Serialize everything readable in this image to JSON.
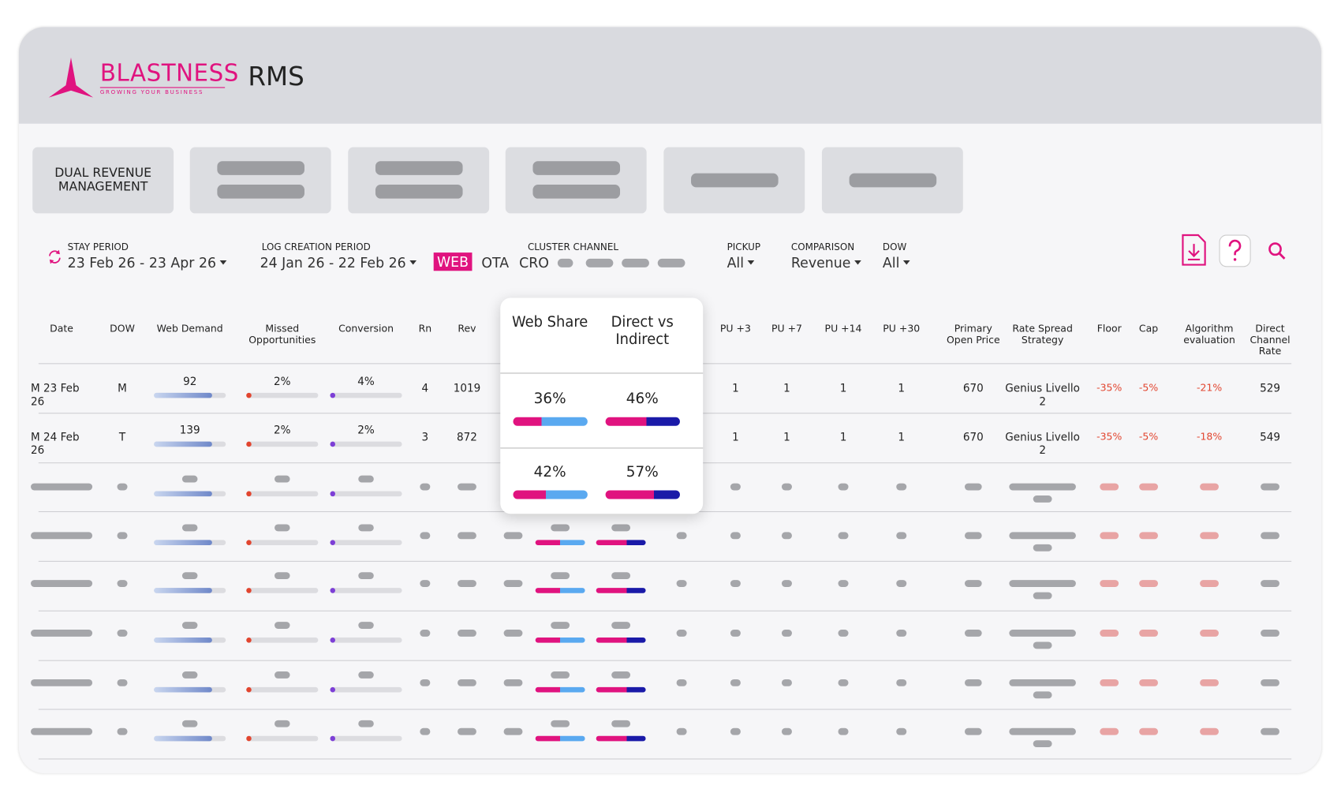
{
  "header": {
    "brand": "BLASTNESS",
    "tagline": "GROWING YOUR BUSINESS",
    "product": "RMS"
  },
  "tabs": [
    "DUAL REVENUE MANAGEMENT"
  ],
  "filters": {
    "stay": {
      "label": "STAY PERIOD",
      "value": "23 Feb 26 - 23 Apr 26"
    },
    "log": {
      "label": "LOG CREATION PERIOD",
      "value": "24 Jan 26 - 22 Feb 26"
    },
    "channels": [
      "WEB",
      "OTA",
      "CRO"
    ],
    "cluster": {
      "label": "CLUSTER CHANNEL"
    },
    "pickup": {
      "label": "PICKUP",
      "value": "All"
    },
    "comparison": {
      "label": "COMPARISON",
      "value": "Revenue"
    },
    "dow": {
      "label": "DOW",
      "value": "All"
    }
  },
  "table": {
    "columns": [
      "Date",
      "DOW",
      "Web Demand",
      "Missed Opportunities",
      "Conversion",
      "Rn",
      "Rev",
      "PU +3",
      "PU +7",
      "PU +14",
      "PU +30",
      "Primary Open Price",
      "Rate Spread Strategy",
      "Floor",
      "Cap",
      "Algorithm evaluation",
      "Direct Channel Rate"
    ],
    "rows": [
      [
        "M 23 Feb 26",
        "M",
        "92",
        "2%",
        "4%",
        "4",
        "1019",
        "1",
        "1",
        "1",
        "1",
        "670",
        "Genius Livello 2",
        "-35%",
        "-5%",
        "-21%",
        "529"
      ],
      [
        "M 24 Feb 26",
        "T",
        "139",
        "2%",
        "2%",
        "3",
        "872",
        "1",
        "1",
        "1",
        "1",
        "670",
        "Genius Livello 2",
        "-35%",
        "-5%",
        "-18%",
        "549"
      ]
    ]
  },
  "popup": {
    "columns": [
      "Web Share",
      "Direct vs Indirect"
    ],
    "rows": [
      [
        "36%",
        "46%"
      ],
      [
        "42%",
        "57%"
      ]
    ]
  }
}
